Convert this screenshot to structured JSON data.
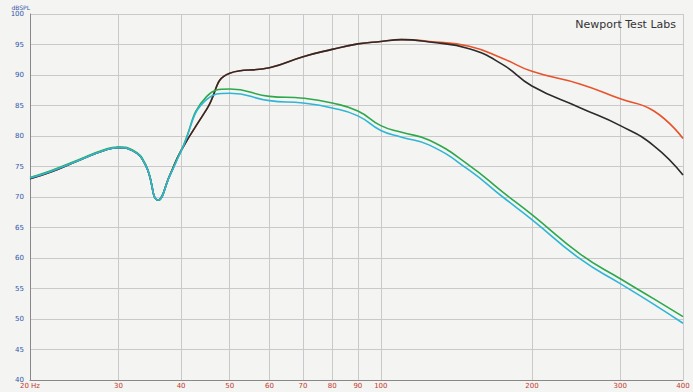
{
  "chart_data": {
    "type": "line",
    "title": "Newport Test Labs",
    "y_label": "dBSPL",
    "log": "x",
    "grid": true,
    "x": [
      20,
      22,
      25,
      28,
      30,
      32,
      34,
      36,
      38,
      40,
      45,
      50,
      60,
      70,
      80,
      90,
      100,
      110,
      125,
      150,
      175,
      200,
      250,
      300,
      350,
      400
    ],
    "series": [
      {
        "color": "#e8532b",
        "values": [
          73.0,
          74.1,
          76.0,
          77.6,
          78.1,
          77.6,
          75.2,
          69.5,
          73.6,
          77.6,
          84.4,
          90.3,
          91.2,
          93.0,
          94.2,
          95.1,
          95.5,
          95.8,
          95.5,
          94.7,
          92.7,
          90.6,
          88.5,
          86.1,
          84.1,
          79.6
        ]
      },
      {
        "color": "#2b2b2b",
        "values": [
          73.0,
          74.1,
          76.0,
          77.6,
          78.1,
          77.6,
          75.2,
          69.5,
          73.6,
          77.6,
          84.4,
          90.3,
          91.2,
          93.0,
          94.2,
          95.1,
          95.5,
          95.8,
          95.4,
          94.3,
          91.7,
          88.2,
          84.6,
          81.7,
          78.4,
          73.6
        ]
      },
      {
        "color": "#2ea84c",
        "values": [
          73.2,
          74.3,
          76.1,
          77.7,
          78.2,
          77.7,
          75.3,
          69.5,
          73.6,
          77.6,
          86.5,
          87.7,
          86.5,
          86.2,
          85.4,
          84.1,
          81.7,
          80.6,
          79.3,
          75.2,
          70.8,
          67.1,
          60.6,
          56.6,
          53.3,
          50.4
        ]
      },
      {
        "color": "#2fb5d6",
        "values": [
          73.1,
          74.2,
          76.0,
          77.6,
          78.1,
          77.6,
          75.2,
          69.5,
          73.5,
          77.5,
          86.0,
          87.0,
          85.8,
          85.4,
          84.6,
          83.3,
          80.9,
          79.8,
          78.5,
          74.4,
          70.0,
          66.3,
          59.8,
          55.8,
          52.4,
          49.3
        ]
      }
    ],
    "xlim": [
      20,
      400
    ],
    "xticks": [
      {
        "value": 20,
        "label": "20 Hz"
      },
      30,
      40,
      50,
      60,
      70,
      80,
      90,
      100,
      200,
      300,
      400
    ],
    "ylim": [
      40,
      100
    ],
    "yticks": [
      40,
      45,
      50,
      55,
      60,
      65,
      70,
      75,
      80,
      85,
      90,
      95,
      100
    ]
  }
}
